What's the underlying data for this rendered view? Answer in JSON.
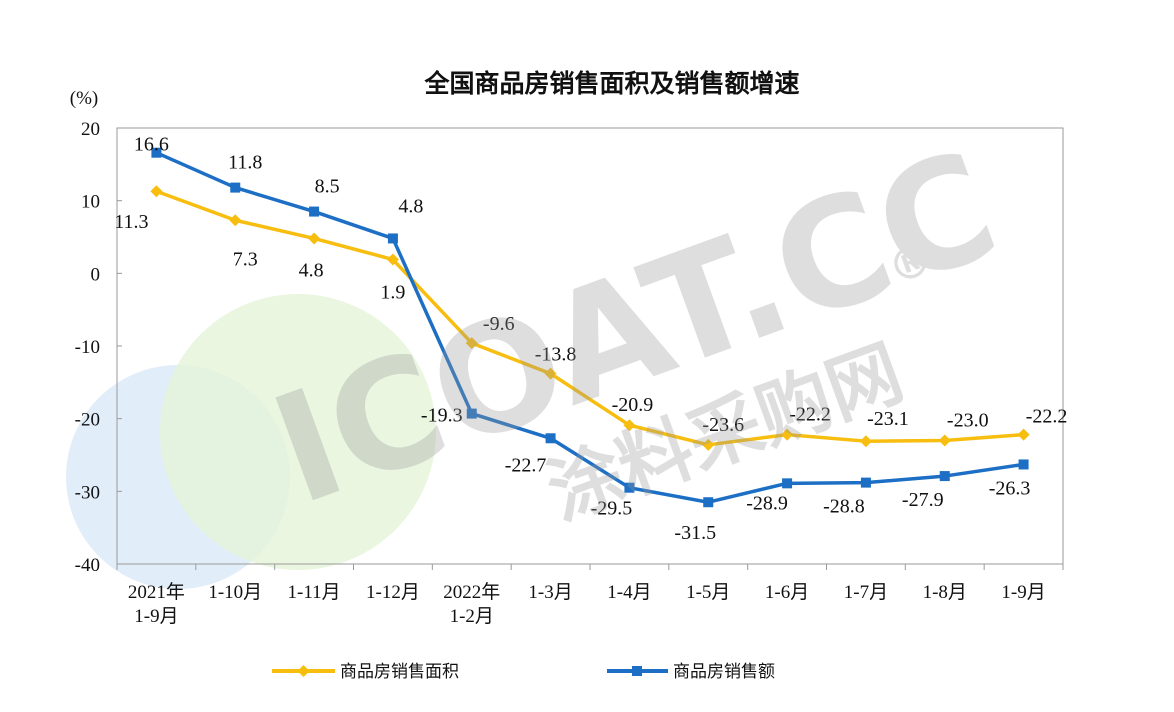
{
  "chart_data": {
    "type": "line",
    "title": "全国商品房销售面积及销售额增速",
    "ylabel": "(%)",
    "ylim": [
      -40,
      20
    ],
    "yticks": [
      20,
      10,
      0,
      -10,
      -20,
      -30,
      -40
    ],
    "ytick_labels": [
      "20",
      "10",
      "0",
      "-10",
      "-20",
      "-30",
      "-40"
    ],
    "categories": [
      [
        "2021年",
        "1-9月"
      ],
      [
        "1-10月"
      ],
      [
        "1-11月"
      ],
      [
        "1-12月"
      ],
      [
        "2022年",
        "1-2月"
      ],
      [
        "1-3月"
      ],
      [
        "1-4月"
      ],
      [
        "1-5月"
      ],
      [
        "1-6月"
      ],
      [
        "1-7月"
      ],
      [
        "1-8月"
      ],
      [
        "1-9月"
      ]
    ],
    "series": [
      {
        "name": "商品房销售面积",
        "color": "#f7bd0f",
        "values": [
          11.3,
          7.3,
          4.8,
          1.9,
          -9.6,
          -13.8,
          -20.9,
          -23.6,
          -22.2,
          -23.1,
          -23.0,
          -22.2
        ],
        "labels": [
          "11.3",
          "7.3",
          "4.8",
          "1.9",
          "-9.6",
          "-13.8",
          "-20.9",
          "-23.6",
          "-22.2",
          "-23.1",
          "-23.0",
          "-22.2"
        ]
      },
      {
        "name": "商品房销售额",
        "color": "#1c6fc4",
        "values": [
          16.6,
          11.8,
          8.5,
          4.8,
          -19.3,
          -22.7,
          -29.5,
          -31.5,
          -28.9,
          -28.8,
          -27.9,
          -26.3
        ],
        "labels": [
          "16.6",
          "11.8",
          "8.5",
          "4.8",
          "-19.3",
          "-22.7",
          "-29.5",
          "-31.5",
          "-28.9",
          "-28.8",
          "-27.9",
          "-26.3"
        ]
      }
    ],
    "grid": false,
    "legend_position": "bottom"
  },
  "watermark": {
    "text_main": "ICOAT.CC",
    "text_sub": "涂料采购网",
    "registered_mark": "®",
    "logo_colors": [
      "#d8ecf9",
      "#e4f5d4"
    ]
  }
}
